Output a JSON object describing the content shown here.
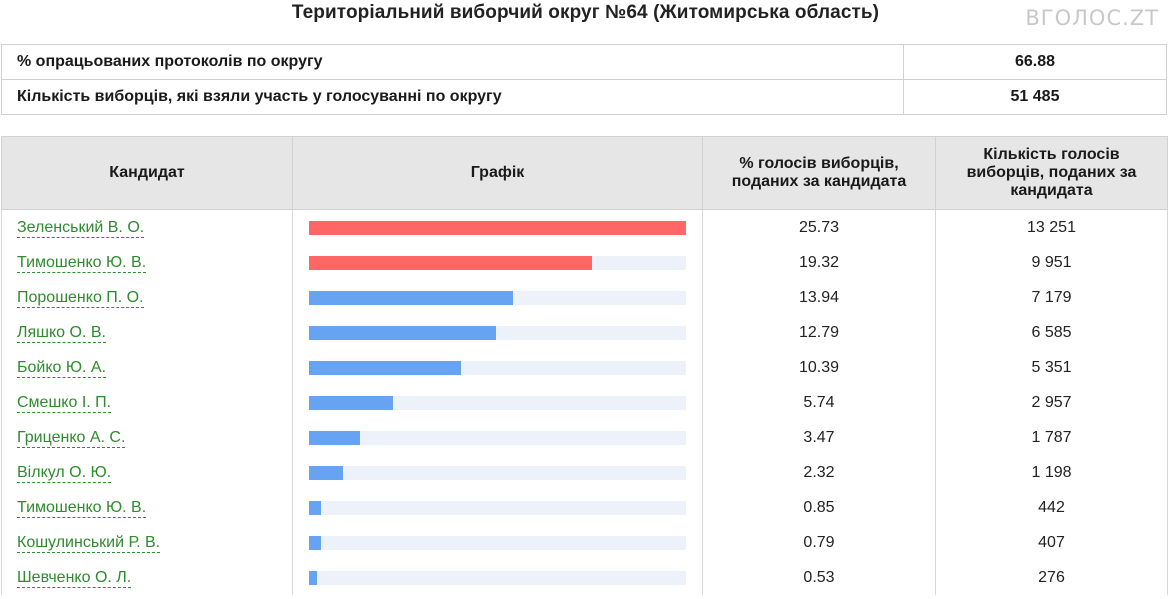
{
  "page": {
    "title": "Територіальний виборчий округ №64 (Житомирська область)",
    "logo": "ВГОЛОС.ZT"
  },
  "summary": [
    {
      "label": "% опрацьованих протоколів по округу",
      "value": "66.88"
    },
    {
      "label": "Кількість виборців, які взяли участь у голосуванні по округу",
      "value": "51 485"
    }
  ],
  "table": {
    "headers": {
      "candidate": "Кандидат",
      "chart": "Графік",
      "percent": "% голосів виборців, поданих за кандидата",
      "votes": "Кількість голосів виборців, поданих за кандидата"
    },
    "rows": [
      {
        "name": "Зеленський В. О.",
        "percent": "25.73",
        "votes": "13 251",
        "bar": 25.73,
        "color": "#ff6666"
      },
      {
        "name": "Тимошенко Ю. В.",
        "percent": "19.32",
        "votes": "9 951",
        "bar": 19.32,
        "color": "#ff6666"
      },
      {
        "name": "Порошенко П. О.",
        "percent": "13.94",
        "votes": "7 179",
        "bar": 13.94,
        "color": "#66a3f2"
      },
      {
        "name": "Ляшко О. В.",
        "percent": "12.79",
        "votes": "6 585",
        "bar": 12.79,
        "color": "#66a3f2"
      },
      {
        "name": "Бойко Ю. А.",
        "percent": "10.39",
        "votes": "5 351",
        "bar": 10.39,
        "color": "#66a3f2"
      },
      {
        "name": "Смешко І. П.",
        "percent": "5.74",
        "votes": "2 957",
        "bar": 5.74,
        "color": "#66a3f2"
      },
      {
        "name": "Гриценко А. С.",
        "percent": "3.47",
        "votes": "1 787",
        "bar": 3.47,
        "color": "#66a3f2"
      },
      {
        "name": "Вілкул О. Ю.",
        "percent": "2.32",
        "votes": "1 198",
        "bar": 2.32,
        "color": "#66a3f2"
      },
      {
        "name": "Тимошенко Ю. В.",
        "percent": "0.85",
        "votes": "442",
        "bar": 0.85,
        "color": "#66a3f2"
      },
      {
        "name": "Кошулинський Р. В.",
        "percent": "0.79",
        "votes": "407",
        "bar": 0.79,
        "color": "#66a3f2"
      },
      {
        "name": "Шевченко О. Л.",
        "percent": "0.53",
        "votes": "276",
        "bar": 0.53,
        "color": "#66a3f2"
      }
    ]
  }
}
